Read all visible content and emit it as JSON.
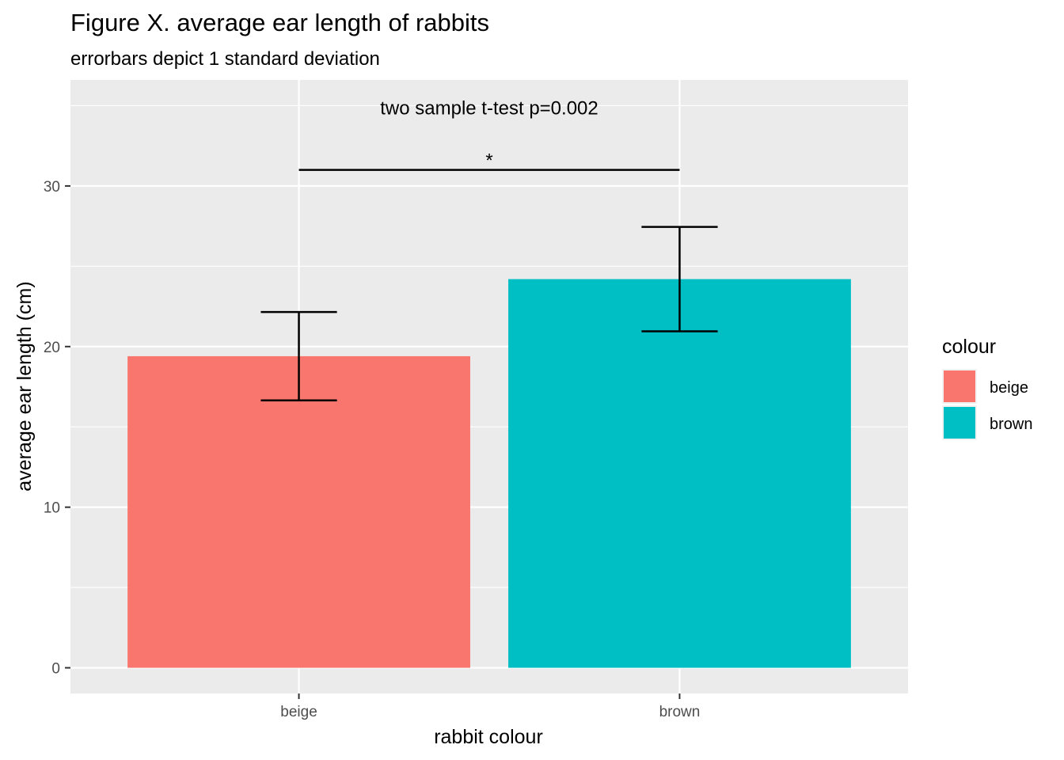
{
  "chart_data": {
    "type": "bar",
    "title": "Figure X. average ear length of rabbits",
    "subtitle": "errorbars depict 1 standard deviation",
    "xlabel": "rabbit colour",
    "ylabel": "average ear length (cm)",
    "categories": [
      "beige",
      "brown"
    ],
    "values": [
      19.4,
      24.2
    ],
    "sd": [
      2.75,
      3.25
    ],
    "colors": [
      "#F8766D",
      "#00BFC4"
    ],
    "ylim": [
      -1.6,
      36.6
    ],
    "yticks": [
      0,
      10,
      20,
      30
    ],
    "grid": true,
    "annotation": {
      "text": "two sample t-test p=0.002",
      "significance": "*",
      "bracket_y": 31
    },
    "legend": {
      "title": "colour",
      "position": "right",
      "items": [
        "beige",
        "brown"
      ]
    }
  }
}
